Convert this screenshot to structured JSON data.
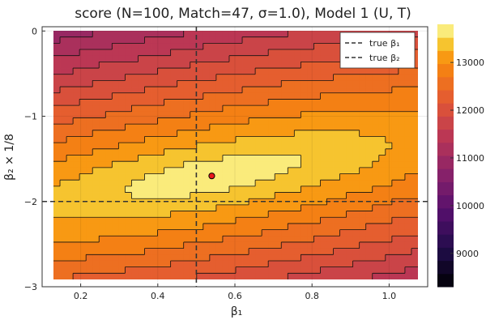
{
  "chart_data": {
    "type": "heatmap",
    "title": "score (N=100, Match=47, σ=1.0), Model 1 (U, T)",
    "xlabel": "β₁",
    "ylabel": "β₂ × 1/8",
    "xlim": [
      0.1,
      1.1
    ],
    "ylim": [
      -3.0,
      0.05
    ],
    "x_ticks": [
      0.2,
      0.4,
      0.6,
      0.8,
      1.0
    ],
    "x_tick_labels": [
      "0.2",
      "0.4",
      "0.6",
      "0.8",
      "1.0"
    ],
    "y_ticks": [
      0,
      -1,
      -2,
      -3
    ],
    "y_tick_labels": [
      "0",
      "−1",
      "−2",
      "−3"
    ],
    "grid": true,
    "colormap": "inferno",
    "colorbar": {
      "range": [
        8300,
        13800
      ],
      "ticks": [
        9000,
        10000,
        11000,
        12000,
        13000
      ],
      "tick_labels": [
        "9000",
        "10000",
        "11000",
        "12000",
        "13000"
      ],
      "levels": 20
    },
    "contour": {
      "peak": {
        "x": 0.54,
        "y": -1.7,
        "value": 13800
      },
      "ellipse_angle_deg": -14,
      "semi_major": 0.45,
      "semi_minor": 0.11,
      "floor_value": 8300
    },
    "reference_lines": [
      {
        "name": "true β₁",
        "orientation": "vertical",
        "value": 0.5,
        "style": "dashed"
      },
      {
        "name": "true β₂",
        "orientation": "horizontal",
        "value": -2.0,
        "style": "dashed"
      }
    ],
    "marker": {
      "x": 0.54,
      "y": -1.7,
      "color": "#e8161b"
    },
    "legend": {
      "placement": "top-right",
      "entries": [
        "true β₁",
        "true β₂"
      ]
    }
  }
}
